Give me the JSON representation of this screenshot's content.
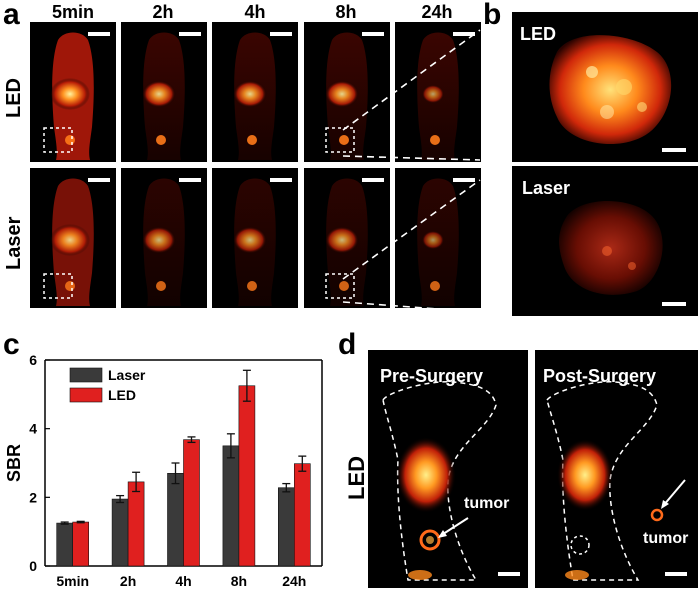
{
  "panels": {
    "a": "a",
    "b": "b",
    "c": "c",
    "d": "d"
  },
  "panel_a": {
    "time_points": [
      "5min",
      "2h",
      "4h",
      "8h",
      "24h"
    ],
    "rows": [
      "LED",
      "Laser"
    ]
  },
  "panel_b": {
    "labels": [
      "LED",
      "Laser"
    ]
  },
  "panel_d": {
    "row_label": "LED",
    "pre_title": "Pre-Surgery",
    "post_title": "Post-Surgery",
    "tumor_label": "tumor"
  },
  "colors": {
    "laser": "#3a3a3a",
    "led": "#e0201f",
    "glow": "#ff8c1a",
    "hot": "#ffd34d"
  },
  "chart_data": {
    "type": "bar",
    "categories": [
      "5min",
      "2h",
      "4h",
      "8h",
      "24h"
    ],
    "series": [
      {
        "name": "Laser",
        "values": [
          1.25,
          1.95,
          2.7,
          3.5,
          2.28
        ],
        "errors": [
          0.03,
          0.1,
          0.3,
          0.35,
          0.12
        ]
      },
      {
        "name": "LED",
        "values": [
          1.28,
          2.45,
          3.68,
          5.25,
          2.98
        ],
        "errors": [
          0.02,
          0.28,
          0.08,
          0.45,
          0.22
        ]
      }
    ],
    "ylabel": "SBR",
    "ylim": [
      0,
      6
    ],
    "yticks": [
      0,
      2,
      4,
      6
    ]
  }
}
